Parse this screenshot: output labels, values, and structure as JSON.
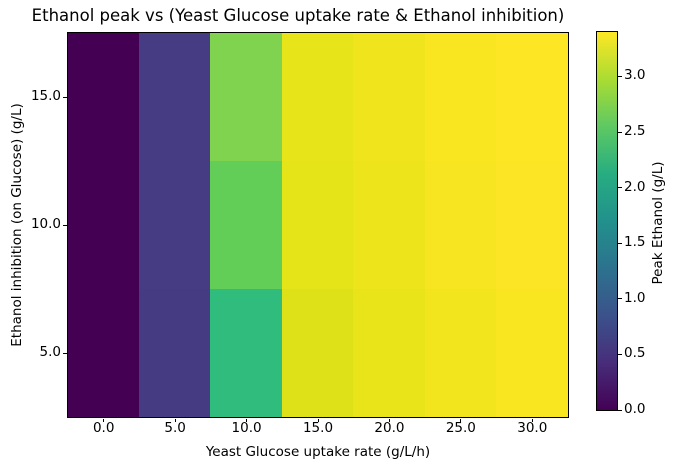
{
  "chart_data": {
    "type": "heatmap",
    "title": "Ethanol peak vs (Yeast Glucose uptake rate & Ethanol inhibition)",
    "xlabel": "Yeast Glucose uptake rate (g/L/h)",
    "ylabel": "Ethanol inhibition (on Glucose) (g/L)",
    "colorbar_label": "Peak Ethanol (g/L)",
    "colormap": "viridis",
    "grid": false,
    "legend_position": "colorbar-right",
    "x_values": [
      0,
      5,
      10,
      15,
      20,
      25,
      30
    ],
    "y_values": [
      15,
      10,
      5
    ],
    "x_ticks": [
      "0.0",
      "5.0",
      "10.0",
      "15.0",
      "20.0",
      "25.0",
      "30.0"
    ],
    "y_ticks": [
      "15.0",
      "10.0",
      "5.0"
    ],
    "x_range": [
      -2.5,
      32.5
    ],
    "y_range": [
      2.5,
      17.5
    ],
    "colorbar_ticks": [
      "0.0",
      "0.5",
      "1.0",
      "1.5",
      "2.0",
      "2.5",
      "3.0"
    ],
    "colorbar_tick_values": [
      0,
      0.5,
      1,
      1.5,
      2,
      2.5,
      3
    ],
    "colorbar_range": [
      0,
      3.4
    ],
    "values": [
      [
        0.0,
        0.6,
        2.7,
        3.15,
        3.25,
        3.35,
        3.4
      ],
      [
        0.0,
        0.6,
        2.6,
        3.12,
        3.22,
        3.32,
        3.38
      ],
      [
        0.0,
        0.6,
        2.15,
        3.05,
        3.16,
        3.27,
        3.35
      ]
    ],
    "cell_colors": [
      [
        "#440154",
        "#453c84",
        "#7fd34e",
        "#e7e419",
        "#f0e51d",
        "#f9e621",
        "#fde725"
      ],
      [
        "#440154",
        "#453c84",
        "#62cd57",
        "#e5e419",
        "#eee41c",
        "#f7e522",
        "#fce524"
      ],
      [
        "#440154",
        "#443b82",
        "#2fbc7c",
        "#dfe118",
        "#e9e41a",
        "#f2e51e",
        "#f9e621"
      ]
    ],
    "viridis_stops": [
      "#440154",
      "#472d7b",
      "#3b528b",
      "#2c728e",
      "#21918c",
      "#27ad81",
      "#5ec962",
      "#aadc32",
      "#fde725"
    ],
    "spine_color": "#000000",
    "background_color": "#ffffff"
  }
}
